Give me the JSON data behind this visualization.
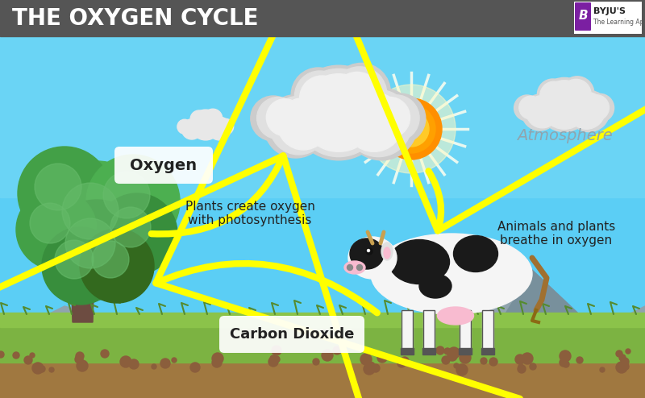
{
  "title": "THE OXYGEN CYCLE",
  "title_bg": "#555555",
  "title_color": "#ffffff",
  "title_fontsize": 22,
  "sky_color": "#4dc8f0",
  "sky_color2": "#7dd8f5",
  "ground_green": "#7cb342",
  "ground_green2": "#8bc34a",
  "dirt_color": "#a0784a",
  "mountain_color": "#8fa8b5",
  "mountain_color2": "#90a4ae",
  "label_oxygen": "Oxygen",
  "label_carbon_dioxide": "Carbon Dioxide",
  "label_atmosphere": "Atmosphere",
  "label_photosynthesis": "Plants create oxygen\nwith photosynthesis",
  "label_breathe": "Animals and plants\nbreathe in oxygen",
  "arrow_color": "#ffff00",
  "byju_purple": "#7b1fa2",
  "fig_width": 8.0,
  "fig_height": 4.94,
  "dpi": 100
}
